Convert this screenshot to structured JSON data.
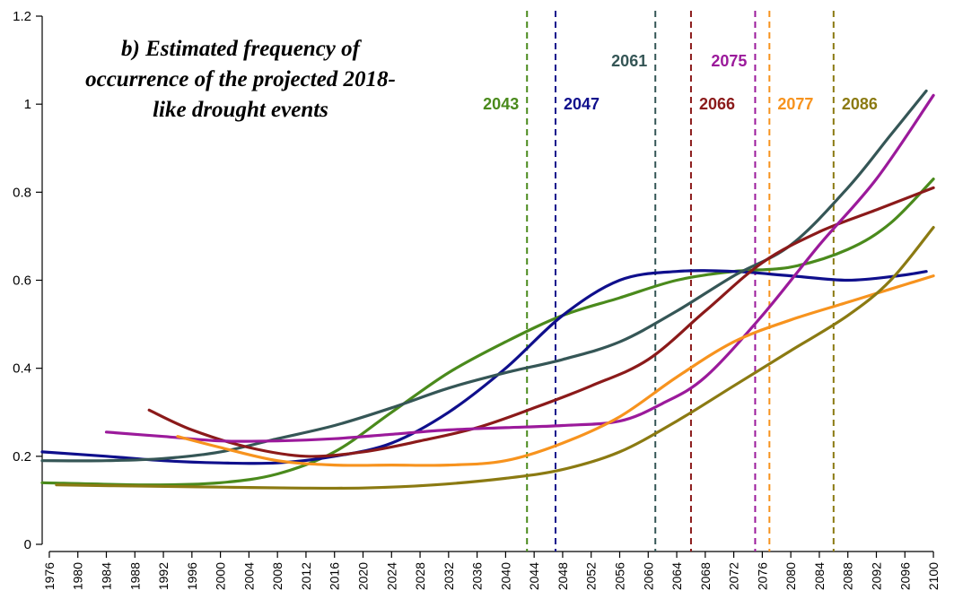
{
  "chart_data": {
    "type": "line",
    "title_lines": [
      "b) Estimated frequency of",
      "occurrence of the projected 2018-",
      "like drought events"
    ],
    "xlabel": "",
    "ylabel": "",
    "xlim": [
      1975,
      2101
    ],
    "ylim": [
      0,
      1.2
    ],
    "grid": false,
    "y_ticks": [
      0,
      0.2,
      0.4,
      0.6,
      0.8,
      1,
      1.2
    ],
    "y_tick_labels": [
      "0",
      "0.2",
      "0.4",
      "0.6",
      "0.8",
      "1",
      "1.2"
    ],
    "x_ticks": [
      1976,
      1980,
      1984,
      1988,
      1992,
      1996,
      2000,
      2004,
      2008,
      2012,
      2016,
      2020,
      2024,
      2028,
      2032,
      2036,
      2040,
      2044,
      2048,
      2052,
      2056,
      2060,
      2064,
      2068,
      2072,
      2076,
      2080,
      2084,
      2088,
      2092,
      2096,
      2100
    ],
    "series": [
      {
        "color": "#4a8a1c",
        "points": [
          [
            1975,
            0.14
          ],
          [
            1990,
            0.135
          ],
          [
            2000,
            0.14
          ],
          [
            2008,
            0.16
          ],
          [
            2016,
            0.21
          ],
          [
            2024,
            0.3
          ],
          [
            2032,
            0.39
          ],
          [
            2040,
            0.46
          ],
          [
            2048,
            0.52
          ],
          [
            2056,
            0.56
          ],
          [
            2064,
            0.6
          ],
          [
            2072,
            0.62
          ],
          [
            2080,
            0.63
          ],
          [
            2088,
            0.67
          ],
          [
            2094,
            0.73
          ],
          [
            2100,
            0.83
          ]
        ]
      },
      {
        "color": "#0f0f8c",
        "points": [
          [
            1975,
            0.21
          ],
          [
            1984,
            0.2
          ],
          [
            1992,
            0.19
          ],
          [
            2000,
            0.185
          ],
          [
            2008,
            0.185
          ],
          [
            2016,
            0.2
          ],
          [
            2024,
            0.23
          ],
          [
            2032,
            0.3
          ],
          [
            2040,
            0.4
          ],
          [
            2048,
            0.52
          ],
          [
            2056,
            0.6
          ],
          [
            2064,
            0.62
          ],
          [
            2072,
            0.62
          ],
          [
            2080,
            0.61
          ],
          [
            2088,
            0.6
          ],
          [
            2095,
            0.61
          ],
          [
            2099,
            0.62
          ]
        ]
      },
      {
        "color": "#355656",
        "points": [
          [
            1975,
            0.19
          ],
          [
            1984,
            0.19
          ],
          [
            1992,
            0.195
          ],
          [
            2000,
            0.21
          ],
          [
            2008,
            0.24
          ],
          [
            2016,
            0.27
          ],
          [
            2024,
            0.31
          ],
          [
            2032,
            0.355
          ],
          [
            2040,
            0.39
          ],
          [
            2048,
            0.42
          ],
          [
            2056,
            0.46
          ],
          [
            2064,
            0.53
          ],
          [
            2072,
            0.61
          ],
          [
            2080,
            0.68
          ],
          [
            2088,
            0.81
          ],
          [
            2094,
            0.93
          ],
          [
            2099,
            1.03
          ]
        ]
      },
      {
        "color": "#8b1a1a",
        "points": [
          [
            1990,
            0.305
          ],
          [
            1996,
            0.26
          ],
          [
            2004,
            0.22
          ],
          [
            2012,
            0.2
          ],
          [
            2020,
            0.21
          ],
          [
            2028,
            0.235
          ],
          [
            2036,
            0.265
          ],
          [
            2044,
            0.31
          ],
          [
            2052,
            0.36
          ],
          [
            2060,
            0.42
          ],
          [
            2068,
            0.53
          ],
          [
            2076,
            0.64
          ],
          [
            2084,
            0.71
          ],
          [
            2092,
            0.76
          ],
          [
            2100,
            0.81
          ]
        ]
      },
      {
        "color": "#9b1a9b",
        "points": [
          [
            1984,
            0.255
          ],
          [
            1992,
            0.245
          ],
          [
            2000,
            0.235
          ],
          [
            2008,
            0.235
          ],
          [
            2016,
            0.24
          ],
          [
            2024,
            0.25
          ],
          [
            2032,
            0.26
          ],
          [
            2040,
            0.265
          ],
          [
            2048,
            0.27
          ],
          [
            2056,
            0.28
          ],
          [
            2062,
            0.32
          ],
          [
            2068,
            0.38
          ],
          [
            2076,
            0.52
          ],
          [
            2084,
            0.68
          ],
          [
            2092,
            0.83
          ],
          [
            2100,
            1.02
          ]
        ]
      },
      {
        "color": "#f7931e",
        "points": [
          [
            1994,
            0.245
          ],
          [
            2000,
            0.22
          ],
          [
            2008,
            0.19
          ],
          [
            2016,
            0.18
          ],
          [
            2024,
            0.18
          ],
          [
            2032,
            0.18
          ],
          [
            2040,
            0.19
          ],
          [
            2048,
            0.23
          ],
          [
            2056,
            0.29
          ],
          [
            2064,
            0.38
          ],
          [
            2072,
            0.46
          ],
          [
            2080,
            0.51
          ],
          [
            2088,
            0.55
          ],
          [
            2094,
            0.58
          ],
          [
            2100,
            0.61
          ]
        ]
      },
      {
        "color": "#8b7a12",
        "points": [
          [
            1977,
            0.135
          ],
          [
            1990,
            0.132
          ],
          [
            2000,
            0.13
          ],
          [
            2010,
            0.128
          ],
          [
            2020,
            0.128
          ],
          [
            2030,
            0.135
          ],
          [
            2040,
            0.15
          ],
          [
            2048,
            0.17
          ],
          [
            2056,
            0.21
          ],
          [
            2064,
            0.28
          ],
          [
            2072,
            0.36
          ],
          [
            2080,
            0.44
          ],
          [
            2088,
            0.52
          ],
          [
            2094,
            0.6
          ],
          [
            2100,
            0.72
          ]
        ]
      }
    ],
    "vlines": [
      {
        "year": 2043,
        "label": "2043",
        "color": "#4a8a1c",
        "row": 2,
        "side": "left"
      },
      {
        "year": 2047,
        "label": "2047",
        "color": "#0f0f8c",
        "row": 2,
        "side": "right"
      },
      {
        "year": 2061,
        "label": "2061",
        "color": "#355656",
        "row": 1,
        "side": "left"
      },
      {
        "year": 2066,
        "label": "2066",
        "color": "#8b1a1a",
        "row": 2,
        "side": "right"
      },
      {
        "year": 2075,
        "label": "2075",
        "color": "#9b1a9b",
        "row": 1,
        "side": "left"
      },
      {
        "year": 2077,
        "label": "2077",
        "color": "#f7931e",
        "row": 2,
        "side": "right"
      },
      {
        "year": 2086,
        "label": "2086",
        "color": "#8b7a12",
        "row": 2,
        "side": "right"
      }
    ]
  }
}
